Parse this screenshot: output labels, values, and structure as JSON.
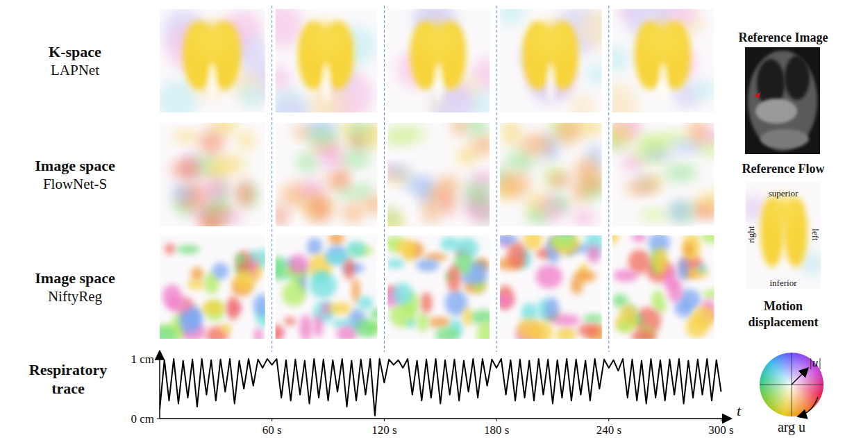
{
  "rows": [
    {
      "title": "K-space",
      "method": "LAPNet"
    },
    {
      "title": "Image space",
      "method": "FlowNet-S"
    },
    {
      "title": "Image space",
      "method": "NiftyReg"
    }
  ],
  "reference_image": {
    "title": "Reference Image"
  },
  "reference_flow": {
    "title": "Reference Flow",
    "superior": "superior",
    "inferior": "inferior",
    "right": "right",
    "left": "left"
  },
  "color_wheel": {
    "title": "Motion displacement",
    "magnitude": "|u|",
    "angle": "arg u"
  },
  "chart_data": {
    "type": "line",
    "title": "Respiratory trace",
    "x_label": "t",
    "x": [
      0,
      2.5,
      5,
      7.5,
      10,
      12.5,
      15,
      17.5,
      20,
      22.5,
      25,
      27.5,
      30,
      32.5,
      35,
      37.5,
      40,
      42.5,
      45,
      47.5,
      50,
      52.5,
      55,
      57.5,
      60,
      62.5,
      65,
      67.5,
      70,
      72.5,
      75,
      77.5,
      80,
      82.5,
      85,
      87.5,
      90,
      92.5,
      95,
      97.5,
      100,
      102.5,
      105,
      107.5,
      110,
      112.5,
      115,
      117.5,
      120,
      122.5,
      125,
      127.5,
      130,
      132.5,
      135,
      137.5,
      140,
      142.5,
      145,
      147.5,
      150,
      152.5,
      155,
      157.5,
      160,
      162.5,
      165,
      167.5,
      170,
      172.5,
      175,
      177.5,
      180,
      182.5,
      185,
      187.5,
      190,
      192.5,
      195,
      197.5,
      200,
      202.5,
      205,
      207.5,
      210,
      212.5,
      215,
      217.5,
      220,
      222.5,
      225,
      227.5,
      230,
      232.5,
      235,
      237.5,
      240,
      242.5,
      245,
      247.5,
      250,
      252.5,
      255,
      257.5,
      260,
      262.5,
      265,
      267.5,
      270,
      272.5,
      275,
      277.5,
      280,
      282.5,
      285,
      287.5,
      290,
      292.5,
      295,
      297.5,
      300
    ],
    "series": [
      {
        "name": "Respiratory trace",
        "color": "#000000",
        "values": [
          0.15,
          0.98,
          0.3,
          1.0,
          0.25,
          0.97,
          0.35,
          0.99,
          0.2,
          1.0,
          0.4,
          0.98,
          0.3,
          0.99,
          0.45,
          1.0,
          0.25,
          0.97,
          0.5,
          1.0,
          0.55,
          0.99,
          0.85,
          1.0,
          0.9,
          1.0,
          0.35,
          0.98,
          0.3,
          0.99,
          0.4,
          0.97,
          0.25,
          1.0,
          0.35,
          0.99,
          0.3,
          0.98,
          0.45,
          1.0,
          0.2,
          0.97,
          0.3,
          0.99,
          0.4,
          1.0,
          0.05,
          1.0,
          0.6,
          0.99,
          0.9,
          0.98,
          0.85,
          1.0,
          0.4,
          0.97,
          0.3,
          0.99,
          0.35,
          1.0,
          0.25,
          0.98,
          0.4,
          0.99,
          0.3,
          0.97,
          0.45,
          1.0,
          0.35,
          1.0,
          0.55,
          0.99,
          0.85,
          1.0,
          0.4,
          0.98,
          0.3,
          0.99,
          0.35,
          0.97,
          0.3,
          1.0,
          0.4,
          0.99,
          0.25,
          0.98,
          0.35,
          1.0,
          0.3,
          0.99,
          0.4,
          0.97,
          0.3,
          1.0,
          0.5,
          0.99,
          0.85,
          0.98,
          0.8,
          1.0,
          0.35,
          0.99,
          0.3,
          0.97,
          0.25,
          1.0,
          0.35,
          0.98,
          0.3,
          0.99,
          0.4,
          1.0,
          0.25,
          0.97,
          0.35,
          0.99,
          0.4,
          1.0,
          0.3,
          0.98,
          0.45
        ]
      }
    ],
    "xlim": [
      0,
      305
    ],
    "ylim": [
      0,
      1.12
    ],
    "xticks": [
      {
        "value": 60,
        "label": "60 s"
      },
      {
        "value": 120,
        "label": "120 s"
      },
      {
        "value": 180,
        "label": "180 s"
      },
      {
        "value": 240,
        "label": "240 s"
      },
      {
        "value": 300,
        "label": "300 s"
      }
    ],
    "yticks": [
      {
        "value": 0,
        "label": "0 cm"
      },
      {
        "value": 1,
        "label": "1 cm"
      }
    ],
    "grid": "x"
  }
}
